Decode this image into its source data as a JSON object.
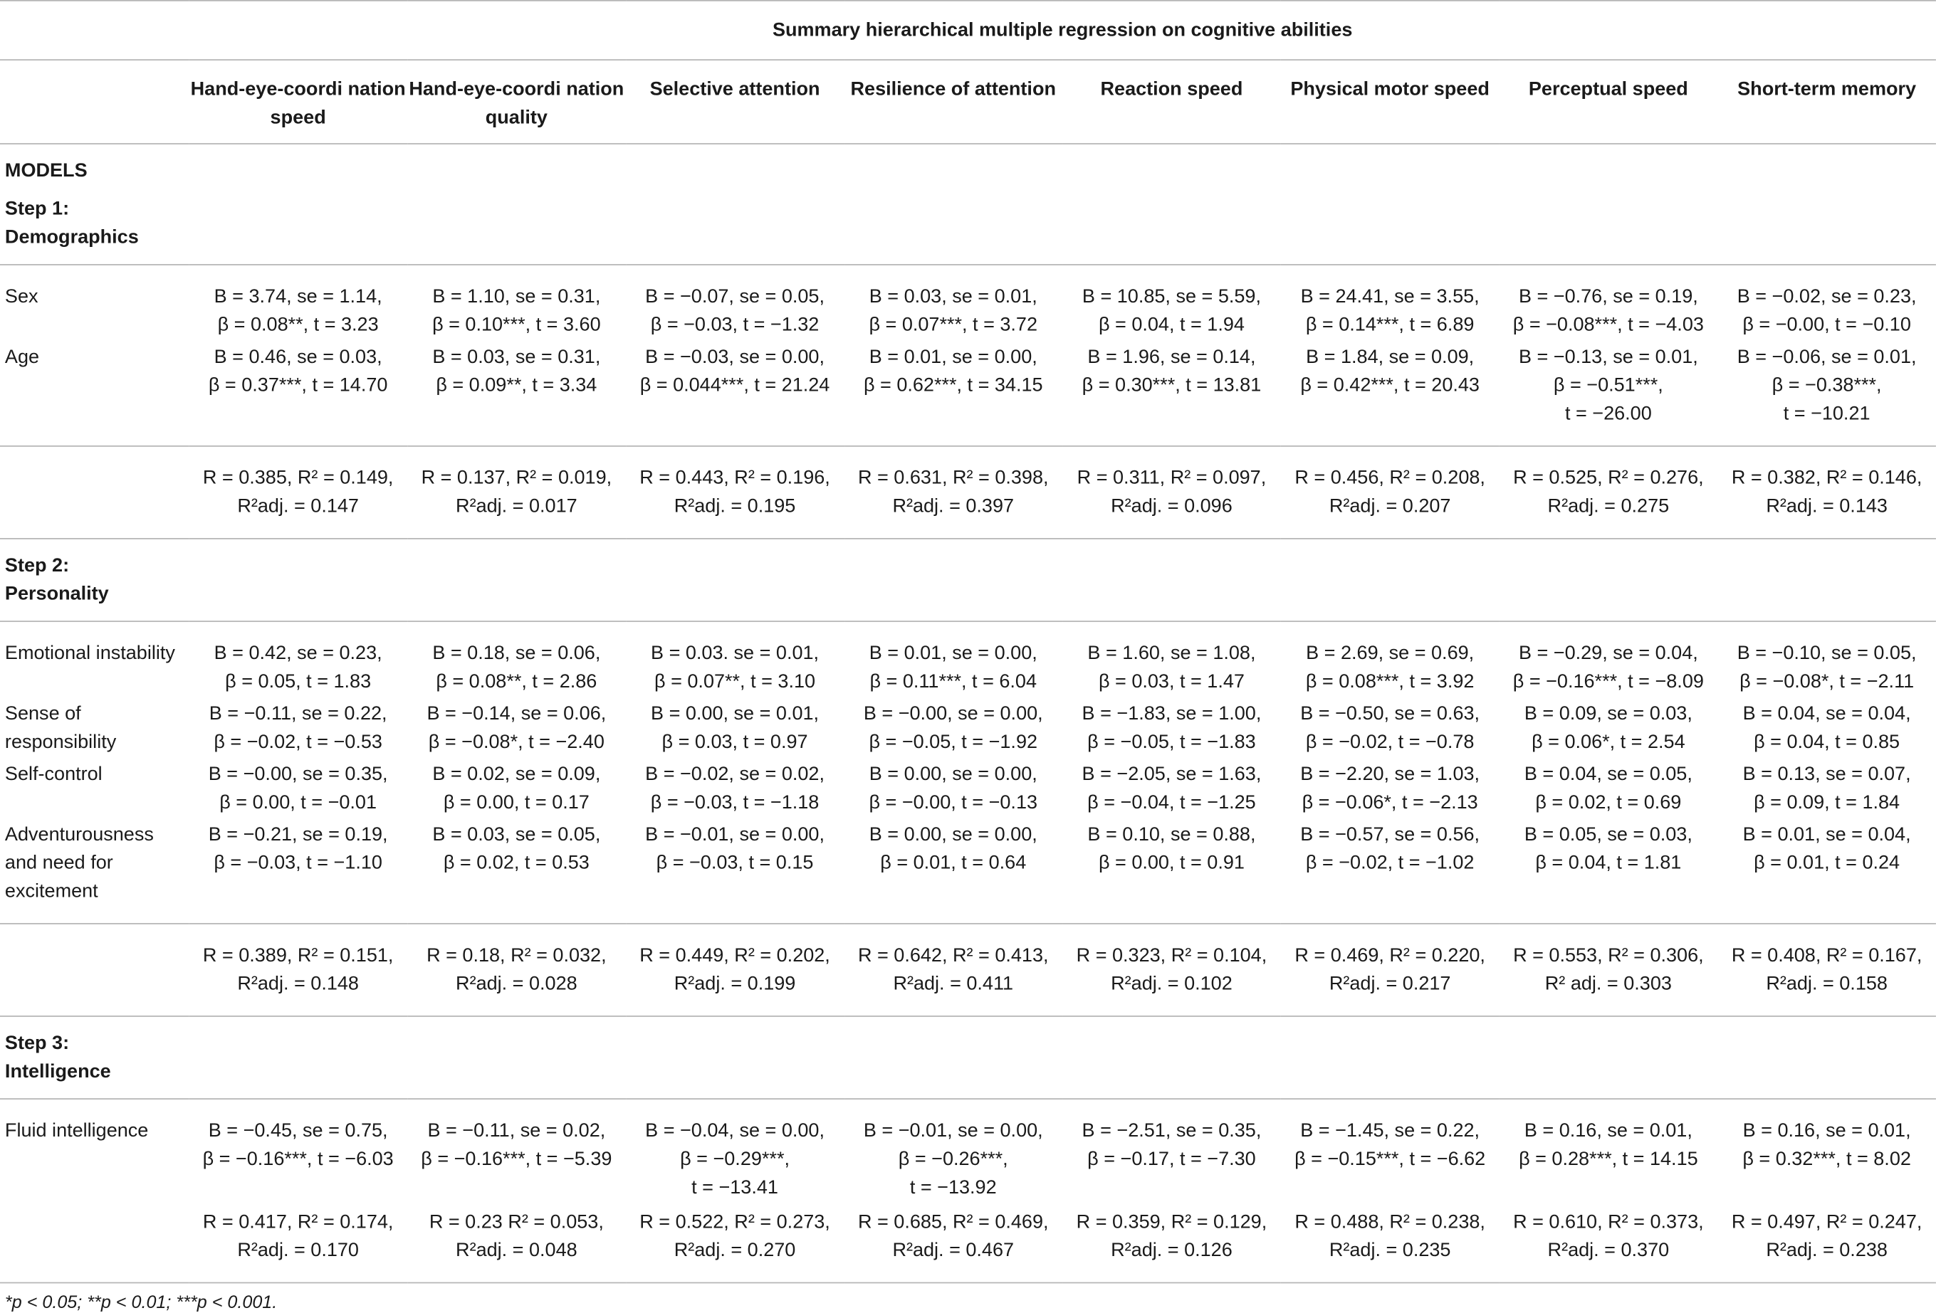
{
  "table": {
    "title": "Summary hierarchical multiple regression on cognitive abilities",
    "columns": [
      "Hand-eye-coordi nation speed",
      "Hand-eye-coordi nation quality",
      "Selective attention",
      "Resilience of attention",
      "Reaction speed",
      "Physical motor speed",
      "Perceptual speed",
      "Short-term memory"
    ],
    "models_label": "MODELS",
    "step1": {
      "label": "Step 1:\nDemographics",
      "rows": [
        {
          "label": "Sex",
          "cells": [
            "B = 3.74, se = 1.14,\nβ = 0.08**, t = 3.23",
            "B = 1.10, se = 0.31,\nβ = 0.10***, t = 3.60",
            "B = −0.07, se = 0.05,\nβ = −0.03, t = −1.32",
            "B = 0.03, se = 0.01,\nβ = 0.07***, t = 3.72",
            "B = 10.85, se = 5.59,\nβ = 0.04, t = 1.94",
            "B = 24.41, se = 3.55,\nβ = 0.14***, t = 6.89",
            "B = −0.76, se = 0.19,\nβ = −0.08***, t = −4.03",
            "B = −0.02, se = 0.23,\nβ = −0.00, t = −0.10"
          ]
        },
        {
          "label": "Age",
          "cells": [
            "B = 0.46, se = 0.03,\nβ = 0.37***, t = 14.70",
            "B = 0.03, se = 0.31,\nβ = 0.09**, t = 3.34",
            "B = −0.03, se = 0.00,\nβ = 0.044***, t = 21.24",
            "B = 0.01, se = 0.00,\nβ = 0.62***, t = 34.15",
            "B = 1.96, se = 0.14,\nβ = 0.30***, t = 13.81",
            "B = 1.84, se = 0.09,\nβ = 0.42***, t = 20.43",
            "B = −0.13, se = 0.01,\nβ = −0.51***,\nt = −26.00",
            "B = −0.06, se = 0.01,\nβ = −0.38***,\nt = −10.21"
          ]
        }
      ],
      "summary": [
        "R = 0.385, R² = 0.149,\nR²adj. = 0.147",
        "R = 0.137, R² = 0.019,\nR²adj. = 0.017",
        "R = 0.443, R² = 0.196,\nR²adj. = 0.195",
        "R = 0.631, R² = 0.398,\nR²adj. = 0.397",
        "R = 0.311, R² = 0.097,\nR²adj. = 0.096",
        "R = 0.456, R² = 0.208,\nR²adj. = 0.207",
        "R = 0.525, R² = 0.276,\nR²adj. = 0.275",
        "R = 0.382, R² = 0.146,\nR²adj. = 0.143"
      ]
    },
    "step2": {
      "label": "Step 2:\nPersonality",
      "rows": [
        {
          "label": "Emotional instability",
          "cells": [
            "B = 0.42, se = 0.23,\nβ = 0.05, t = 1.83",
            "B = 0.18, se = 0.06,\nβ = 0.08**, t = 2.86",
            "B = 0.03. se = 0.01,\nβ = 0.07**, t = 3.10",
            "B = 0.01, se = 0.00,\nβ = 0.11***, t = 6.04",
            "B = 1.60, se = 1.08,\nβ = 0.03, t = 1.47",
            "B = 2.69, se = 0.69,\nβ = 0.08***, t = 3.92",
            "B = −0.29, se = 0.04,\nβ = −0.16***, t = −8.09",
            "B = −0.10, se = 0.05,\nβ = −0.08*, t = −2.11"
          ]
        },
        {
          "label": "Sense of responsibility",
          "cells": [
            "B = −0.11, se = 0.22,\nβ = −0.02, t = −0.53",
            "B = −0.14, se = 0.06,\nβ = −0.08*, t = −2.40",
            "B = 0.00, se = 0.01,\nβ = 0.03, t = 0.97",
            "B = −0.00, se = 0.00,\nβ = −0.05, t = −1.92",
            "B = −1.83, se = 1.00,\nβ = −0.05, t = −1.83",
            "B = −0.50, se = 0.63,\nβ = −0.02, t = −0.78",
            "B = 0.09, se = 0.03,\nβ = 0.06*, t = 2.54",
            "B = 0.04, se = 0.04,\nβ = 0.04, t = 0.85"
          ]
        },
        {
          "label": "Self-control",
          "cells": [
            "B = −0.00, se = 0.35,\nβ = 0.00, t = −0.01",
            "B = 0.02, se = 0.09,\nβ = 0.00, t = 0.17",
            "B = −0.02, se = 0.02,\nβ = −0.03, t = −1.18",
            "B = 0.00, se = 0.00,\nβ = −0.00, t = −0.13",
            "B = −2.05, se = 1.63,\nβ = −0.04, t = −1.25",
            "B = −2.20, se = 1.03,\nβ = −0.06*, t = −2.13",
            "B = 0.04, se = 0.05,\nβ = 0.02, t = 0.69",
            "B = 0.13, se = 0.07,\nβ = 0.09, t = 1.84"
          ]
        },
        {
          "label": "Adventurousness and need for excitement",
          "cells": [
            "B = −0.21, se = 0.19,\nβ = −0.03, t = −1.10",
            "B = 0.03, se = 0.05,\nβ = 0.02, t = 0.53",
            "B = −0.01, se = 0.00,\nβ = −0.03, t = 0.15",
            "B = 0.00, se = 0.00,\nβ = 0.01, t = 0.64",
            "B = 0.10, se = 0.88,\nβ = 0.00, t = 0.91",
            "B = −0.57, se = 0.56,\nβ = −0.02, t = −1.02",
            "B = 0.05, se = 0.03,\nβ = 0.04, t = 1.81",
            "B = 0.01, se = 0.04,\nβ = 0.01, t = 0.24"
          ]
        }
      ],
      "summary": [
        "R = 0.389, R² = 0.151,\nR²adj. = 0.148",
        "R = 0.18, R² = 0.032,\nR²adj. = 0.028",
        "R = 0.449, R² = 0.202,\nR²adj. = 0.199",
        "R = 0.642, R² = 0.413,\nR²adj. = 0.411",
        "R = 0.323, R² = 0.104,\nR²adj. = 0.102",
        "R = 0.469, R² = 0.220,\nR²adj. = 0.217",
        "R = 0.553, R² = 0.306,\nR² adj. = 0.303",
        "R = 0.408, R² = 0.167,\nR²adj. = 0.158"
      ]
    },
    "step3": {
      "label": "Step 3:\nIntelligence",
      "rows": [
        {
          "label": "Fluid intelligence",
          "cells": [
            "B = −0.45, se = 0.75,\nβ = −0.16***, t = −6.03",
            "B = −0.11, se = 0.02,\nβ = −0.16***, t = −5.39",
            "B = −0.04, se = 0.00,\nβ = −0.29***,\nt = −13.41",
            "B = −0.01, se = 0.00,\nβ = −0.26***,\nt = −13.92",
            "B = −2.51, se = 0.35,\nβ = −0.17, t = −7.30",
            "B = −1.45, se = 0.22,\nβ = −0.15***, t = −6.62",
            "B = 0.16, se = 0.01,\nβ = 0.28***, t = 14.15",
            "B = 0.16, se = 0.01,\nβ = 0.32***, t = 8.02"
          ]
        }
      ],
      "summary": [
        "R = 0.417, R² = 0.174,\nR²adj. = 0.170",
        "R = 0.23 R² = 0.053,\nR²adj. = 0.048",
        "R = 0.522, R² = 0.273,\nR²adj. = 0.270",
        "R = 0.685, R² = 0.469,\nR²adj. = 0.467",
        "R = 0.359, R² = 0.129,\nR²adj. = 0.126",
        "R = 0.488, R² = 0.238,\nR²adj. = 0.235",
        "R = 0.610, R² = 0.373,\nR²adj. = 0.370",
        "R = 0.497, R² = 0.247,\nR²adj. = 0.238"
      ]
    },
    "footnote": "*p < 0.05; **p < 0.01; ***p < 0.001."
  }
}
